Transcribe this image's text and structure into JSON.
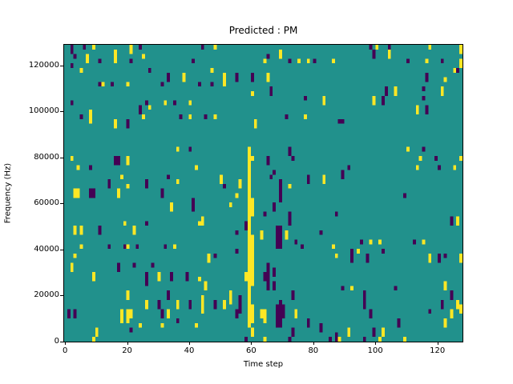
{
  "chart_data": {
    "type": "heatmap",
    "title": "Predicted : PM",
    "xlabel": "Time step",
    "ylabel": "Frequency (Hz)",
    "grid_cols": 128,
    "grid_rows": 64,
    "xlim": [
      -0.3,
      128.1
    ],
    "ylim": [
      0,
      129000
    ],
    "x_tick_values": [
      0,
      20,
      40,
      60,
      80,
      100,
      120
    ],
    "x_tick_labels": [
      "0",
      "20",
      "40",
      "60",
      "80",
      "100",
      "120"
    ],
    "y_tick_values": [
      0,
      20000,
      40000,
      60000,
      80000,
      100000,
      120000
    ],
    "y_tick_labels": [
      "0",
      "20000",
      "40000",
      "60000",
      "80000",
      "100000",
      "120000"
    ],
    "legend": "none",
    "grid": false,
    "colors": {
      "low": "#440154",
      "mid": "#21918c",
      "high": "#fde725",
      "background": "#ffffff",
      "axis": "#000000"
    },
    "value_meaning": {
      "low": "p (purple, low value)",
      "mid": "background (teal, mid value)",
      "high": "y (yellow, high value)"
    },
    "cells_format": "[col(0-127 left-to-right), rowTop(0-63, 0 = highest frequency), rowBottom, 'y'|'p']",
    "cells": [
      [
        2,
        0,
        1,
        "p"
      ],
      [
        6,
        0,
        0,
        "p"
      ],
      [
        9,
        0,
        0,
        "y"
      ],
      [
        21,
        0,
        1,
        "y"
      ],
      [
        24,
        0,
        0,
        "p"
      ],
      [
        3,
        2,
        2,
        "p"
      ],
      [
        7,
        2,
        3,
        "y"
      ],
      [
        11,
        3,
        3,
        "p"
      ],
      [
        16,
        1,
        3,
        "y"
      ],
      [
        21,
        3,
        3,
        "p"
      ],
      [
        25,
        2,
        2,
        "y"
      ],
      [
        41,
        3,
        3,
        "p"
      ],
      [
        2,
        4,
        4,
        "p"
      ],
      [
        5,
        5,
        5,
        "y"
      ],
      [
        27,
        5,
        5,
        "p"
      ],
      [
        33,
        6,
        7,
        "p"
      ],
      [
        38,
        6,
        7,
        "y"
      ],
      [
        11,
        8,
        8,
        "p"
      ],
      [
        12,
        8,
        8,
        "y"
      ],
      [
        15,
        8,
        8,
        "p"
      ],
      [
        20,
        8,
        8,
        "y"
      ],
      [
        31,
        8,
        8,
        "p"
      ],
      [
        43,
        8,
        8,
        "p"
      ],
      [
        2,
        12,
        12,
        "p"
      ],
      [
        26,
        12,
        12,
        "p"
      ],
      [
        27,
        13,
        13,
        "y"
      ],
      [
        32,
        12,
        12,
        "y"
      ],
      [
        35,
        12,
        12,
        "p"
      ],
      [
        40,
        12,
        12,
        "y"
      ],
      [
        5,
        15,
        15,
        "p"
      ],
      [
        8,
        14,
        16,
        "y"
      ],
      [
        24,
        13,
        14,
        "p"
      ],
      [
        25,
        15,
        15,
        "y"
      ],
      [
        37,
        15,
        15,
        "p"
      ],
      [
        40,
        15,
        15,
        "y"
      ],
      [
        16,
        16,
        17,
        "y"
      ],
      [
        20,
        16,
        17,
        "p"
      ],
      [
        44,
        0,
        0,
        "p"
      ],
      [
        48,
        0,
        0,
        "y"
      ],
      [
        65,
        2,
        2,
        "p"
      ],
      [
        69,
        1,
        2,
        "y"
      ],
      [
        64,
        3,
        3,
        "y"
      ],
      [
        72,
        3,
        3,
        "p"
      ],
      [
        75,
        3,
        3,
        "y"
      ],
      [
        78,
        3,
        3,
        "y"
      ],
      [
        80,
        3,
        3,
        "p"
      ],
      [
        86,
        3,
        3,
        "y"
      ],
      [
        47,
        5,
        5,
        "y"
      ],
      [
        51,
        6,
        8,
        "y"
      ],
      [
        55,
        6,
        7,
        "p"
      ],
      [
        60,
        6,
        7,
        "p"
      ],
      [
        65,
        6,
        7,
        "y"
      ],
      [
        47,
        8,
        8,
        "p"
      ],
      [
        60,
        10,
        10,
        "y"
      ],
      [
        66,
        9,
        10,
        "p"
      ],
      [
        77,
        11,
        11,
        "p"
      ],
      [
        83,
        11,
        12,
        "y"
      ],
      [
        45,
        15,
        15,
        "p"
      ],
      [
        48,
        15,
        15,
        "y"
      ],
      [
        71,
        15,
        15,
        "p"
      ],
      [
        77,
        15,
        15,
        "y"
      ],
      [
        61,
        16,
        17,
        "y"
      ],
      [
        88,
        16,
        16,
        "p"
      ],
      [
        98,
        0,
        0,
        "p"
      ],
      [
        99,
        1,
        2,
        "p"
      ],
      [
        100,
        0,
        0,
        "y"
      ],
      [
        104,
        0,
        0,
        "p"
      ],
      [
        104,
        1,
        2,
        "y"
      ],
      [
        117,
        0,
        0,
        "y"
      ],
      [
        127,
        0,
        1,
        "y"
      ],
      [
        110,
        3,
        3,
        "p"
      ],
      [
        116,
        3,
        3,
        "y"
      ],
      [
        121,
        3,
        3,
        "p"
      ],
      [
        127,
        3,
        4,
        "y"
      ],
      [
        125,
        5,
        5,
        "y"
      ],
      [
        126,
        5,
        5,
        "p"
      ],
      [
        116,
        6,
        7,
        "p"
      ],
      [
        122,
        7,
        7,
        "y"
      ],
      [
        103,
        9,
        10,
        "p"
      ],
      [
        106,
        9,
        10,
        "y"
      ],
      [
        115,
        9,
        9,
        "p"
      ],
      [
        121,
        9,
        10,
        "y"
      ],
      [
        115,
        11,
        11,
        "p"
      ],
      [
        99,
        11,
        12,
        "y"
      ],
      [
        102,
        11,
        12,
        "p"
      ],
      [
        113,
        13,
        14,
        "y"
      ],
      [
        116,
        13,
        14,
        "p"
      ],
      [
        89,
        16,
        16,
        "p"
      ],
      [
        2,
        24,
        24,
        "y"
      ],
      [
        4,
        26,
        26,
        "y"
      ],
      [
        8,
        26,
        26,
        "p"
      ],
      [
        16,
        24,
        25,
        "p"
      ],
      [
        17,
        24,
        25,
        "p"
      ],
      [
        20,
        24,
        25,
        "y"
      ],
      [
        36,
        22,
        22,
        "y"
      ],
      [
        40,
        22,
        22,
        "p"
      ],
      [
        18,
        28,
        28,
        "y"
      ],
      [
        14,
        29,
        30,
        "p"
      ],
      [
        20,
        30,
        30,
        "y"
      ],
      [
        26,
        29,
        30,
        "p"
      ],
      [
        33,
        28,
        28,
        "p"
      ],
      [
        36,
        29,
        29,
        "y"
      ],
      [
        42,
        26,
        26,
        "y"
      ],
      [
        3,
        31,
        32,
        "y"
      ],
      [
        4,
        31,
        32,
        "y"
      ],
      [
        8,
        31,
        32,
        "p"
      ],
      [
        9,
        31,
        32,
        "p"
      ],
      [
        17,
        31,
        32,
        "y"
      ],
      [
        31,
        31,
        32,
        "p"
      ],
      [
        41,
        33,
        35,
        "p"
      ],
      [
        34,
        34,
        35,
        "y"
      ],
      [
        19,
        38,
        38,
        "y"
      ],
      [
        26,
        38,
        38,
        "p"
      ],
      [
        43,
        38,
        38,
        "y"
      ],
      [
        3,
        39,
        40,
        "y"
      ],
      [
        5,
        39,
        40,
        "y"
      ],
      [
        11,
        39,
        40,
        "p"
      ],
      [
        22,
        39,
        40,
        "y"
      ],
      [
        59,
        22,
        43,
        "y"
      ],
      [
        60,
        24,
        24,
        "y"
      ],
      [
        60,
        33,
        36,
        "y"
      ],
      [
        60,
        41,
        43,
        "y"
      ],
      [
        72,
        22,
        23,
        "p"
      ],
      [
        65,
        24,
        25,
        "p"
      ],
      [
        73,
        24,
        24,
        "p"
      ],
      [
        67,
        27,
        27,
        "p"
      ],
      [
        50,
        28,
        29,
        "y"
      ],
      [
        66,
        28,
        28,
        "p"
      ],
      [
        69,
        29,
        33,
        "p"
      ],
      [
        72,
        30,
        30,
        "y"
      ],
      [
        78,
        28,
        29,
        "p"
      ],
      [
        83,
        28,
        29,
        "y"
      ],
      [
        51,
        30,
        30,
        "p"
      ],
      [
        56,
        29,
        30,
        "y"
      ],
      [
        55,
        32,
        32,
        "y"
      ],
      [
        53,
        34,
        34,
        "y"
      ],
      [
        67,
        34,
        35,
        "p"
      ],
      [
        64,
        36,
        36,
        "p"
      ],
      [
        72,
        36,
        38,
        "p"
      ],
      [
        87,
        36,
        36,
        "p"
      ],
      [
        44,
        37,
        38,
        "y"
      ],
      [
        58,
        38,
        39,
        "p"
      ],
      [
        55,
        40,
        40,
        "p"
      ],
      [
        63,
        40,
        41,
        "y"
      ],
      [
        68,
        39,
        43,
        "p"
      ],
      [
        69,
        39,
        43,
        "p"
      ],
      [
        71,
        40,
        41,
        "y"
      ],
      [
        74,
        42,
        42,
        "p"
      ],
      [
        82,
        40,
        40,
        "p"
      ],
      [
        110,
        22,
        22,
        "y"
      ],
      [
        115,
        22,
        22,
        "p"
      ],
      [
        114,
        24,
        24,
        "y"
      ],
      [
        119,
        24,
        24,
        "p"
      ],
      [
        127,
        24,
        24,
        "y"
      ],
      [
        91,
        26,
        26,
        "p"
      ],
      [
        113,
        26,
        26,
        "y"
      ],
      [
        120,
        26,
        26,
        "p"
      ],
      [
        125,
        26,
        26,
        "y"
      ],
      [
        89,
        27,
        28,
        "p"
      ],
      [
        109,
        32,
        32,
        "p"
      ],
      [
        124,
        37,
        38,
        "p"
      ],
      [
        126,
        37,
        38,
        "y"
      ],
      [
        95,
        42,
        42,
        "p"
      ],
      [
        98,
        42,
        42,
        "y"
      ],
      [
        101,
        42,
        42,
        "y"
      ],
      [
        112,
        42,
        42,
        "p"
      ],
      [
        115,
        42,
        42,
        "y"
      ],
      [
        5,
        43,
        43,
        "y"
      ],
      [
        14,
        43,
        43,
        "p"
      ],
      [
        19,
        43,
        43,
        "p"
      ],
      [
        20,
        43,
        43,
        "y"
      ],
      [
        23,
        43,
        43,
        "p"
      ],
      [
        32,
        43,
        43,
        "p"
      ],
      [
        35,
        43,
        43,
        "y"
      ],
      [
        3,
        45,
        45,
        "y"
      ],
      [
        2,
        47,
        48,
        "y"
      ],
      [
        17,
        47,
        48,
        "p"
      ],
      [
        22,
        47,
        47,
        "p"
      ],
      [
        28,
        47,
        47,
        "p"
      ],
      [
        9,
        49,
        50,
        "y"
      ],
      [
        26,
        49,
        51,
        "p"
      ],
      [
        30,
        49,
        50,
        "y"
      ],
      [
        34,
        49,
        50,
        "p"
      ],
      [
        39,
        49,
        50,
        "p"
      ],
      [
        43,
        50,
        50,
        "y"
      ],
      [
        20,
        53,
        54,
        "y"
      ],
      [
        33,
        53,
        54,
        "p"
      ],
      [
        26,
        55,
        56,
        "y"
      ],
      [
        30,
        55,
        56,
        "p"
      ],
      [
        36,
        55,
        56,
        "y"
      ],
      [
        40,
        55,
        56,
        "p"
      ],
      [
        1,
        57,
        58,
        "p"
      ],
      [
        3,
        57,
        58,
        "p"
      ],
      [
        18,
        57,
        59,
        "y"
      ],
      [
        20,
        57,
        59,
        "y"
      ],
      [
        21,
        57,
        58,
        "y"
      ],
      [
        31,
        57,
        58,
        "p"
      ],
      [
        33,
        57,
        58,
        "y"
      ],
      [
        36,
        59,
        59,
        "p"
      ],
      [
        24,
        60,
        60,
        "y"
      ],
      [
        31,
        60,
        60,
        "y"
      ],
      [
        42,
        60,
        60,
        "y"
      ],
      [
        21,
        61,
        61,
        "p"
      ],
      [
        10,
        61,
        62,
        "y"
      ],
      [
        9,
        63,
        63,
        "y"
      ],
      [
        59,
        43,
        60,
        "y"
      ],
      [
        60,
        44,
        51,
        "y"
      ],
      [
        60,
        56,
        59,
        "y"
      ],
      [
        58,
        49,
        50,
        "y"
      ],
      [
        60,
        61,
        62,
        "y"
      ],
      [
        46,
        45,
        46,
        "y"
      ],
      [
        48,
        45,
        45,
        "p"
      ],
      [
        55,
        44,
        44,
        "p"
      ],
      [
        69,
        43,
        43,
        "p"
      ],
      [
        76,
        43,
        43,
        "p"
      ],
      [
        86,
        43,
        43,
        "y"
      ],
      [
        87,
        45,
        45,
        "y"
      ],
      [
        65,
        47,
        52,
        "p"
      ],
      [
        64,
        49,
        50,
        "p"
      ],
      [
        67,
        48,
        49,
        "p"
      ],
      [
        67,
        51,
        52,
        "p"
      ],
      [
        45,
        51,
        52,
        "y"
      ],
      [
        53,
        53,
        55,
        "y"
      ],
      [
        51,
        55,
        56,
        "y"
      ],
      [
        48,
        55,
        56,
        "p"
      ],
      [
        44,
        54,
        57,
        "y"
      ],
      [
        56,
        54,
        57,
        "p"
      ],
      [
        55,
        57,
        58,
        "p"
      ],
      [
        63,
        57,
        58,
        "y"
      ],
      [
        64,
        57,
        59,
        "y"
      ],
      [
        68,
        56,
        60,
        "p"
      ],
      [
        69,
        55,
        60,
        "p"
      ],
      [
        70,
        56,
        58,
        "p"
      ],
      [
        74,
        57,
        58,
        "y"
      ],
      [
        73,
        53,
        54,
        "p"
      ],
      [
        73,
        61,
        62,
        "p"
      ],
      [
        78,
        59,
        60,
        "p"
      ],
      [
        58,
        63,
        63,
        "p"
      ],
      [
        64,
        63,
        63,
        "y"
      ],
      [
        72,
        63,
        63,
        "p"
      ],
      [
        82,
        60,
        61,
        "p"
      ],
      [
        87,
        62,
        63,
        "p"
      ],
      [
        85,
        63,
        63,
        "p"
      ],
      [
        88,
        63,
        63,
        "y"
      ],
      [
        92,
        44,
        46,
        "p"
      ],
      [
        94,
        44,
        44,
        "y"
      ],
      [
        97,
        45,
        46,
        "p"
      ],
      [
        102,
        44,
        44,
        "p"
      ],
      [
        117,
        45,
        46,
        "y"
      ],
      [
        120,
        45,
        46,
        "p"
      ],
      [
        122,
        45,
        45,
        "p"
      ],
      [
        127,
        45,
        46,
        "y"
      ],
      [
        89,
        52,
        52,
        "p"
      ],
      [
        92,
        52,
        52,
        "y"
      ],
      [
        106,
        52,
        52,
        "p"
      ],
      [
        122,
        51,
        52,
        "y"
      ],
      [
        96,
        53,
        56,
        "p"
      ],
      [
        124,
        53,
        54,
        "p"
      ],
      [
        121,
        55,
        56,
        "p"
      ],
      [
        126,
        55,
        56,
        "y"
      ],
      [
        127,
        56,
        57,
        "y"
      ],
      [
        98,
        57,
        58,
        "p"
      ],
      [
        117,
        57,
        57,
        "p"
      ],
      [
        124,
        57,
        58,
        "y"
      ],
      [
        122,
        59,
        60,
        "y"
      ],
      [
        107,
        59,
        60,
        "p"
      ],
      [
        91,
        61,
        62,
        "y"
      ],
      [
        99,
        61,
        62,
        "p"
      ],
      [
        102,
        61,
        62,
        "y"
      ],
      [
        96,
        63,
        63,
        "p"
      ],
      [
        101,
        63,
        63,
        "y"
      ],
      [
        109,
        63,
        63,
        "y"
      ]
    ]
  }
}
